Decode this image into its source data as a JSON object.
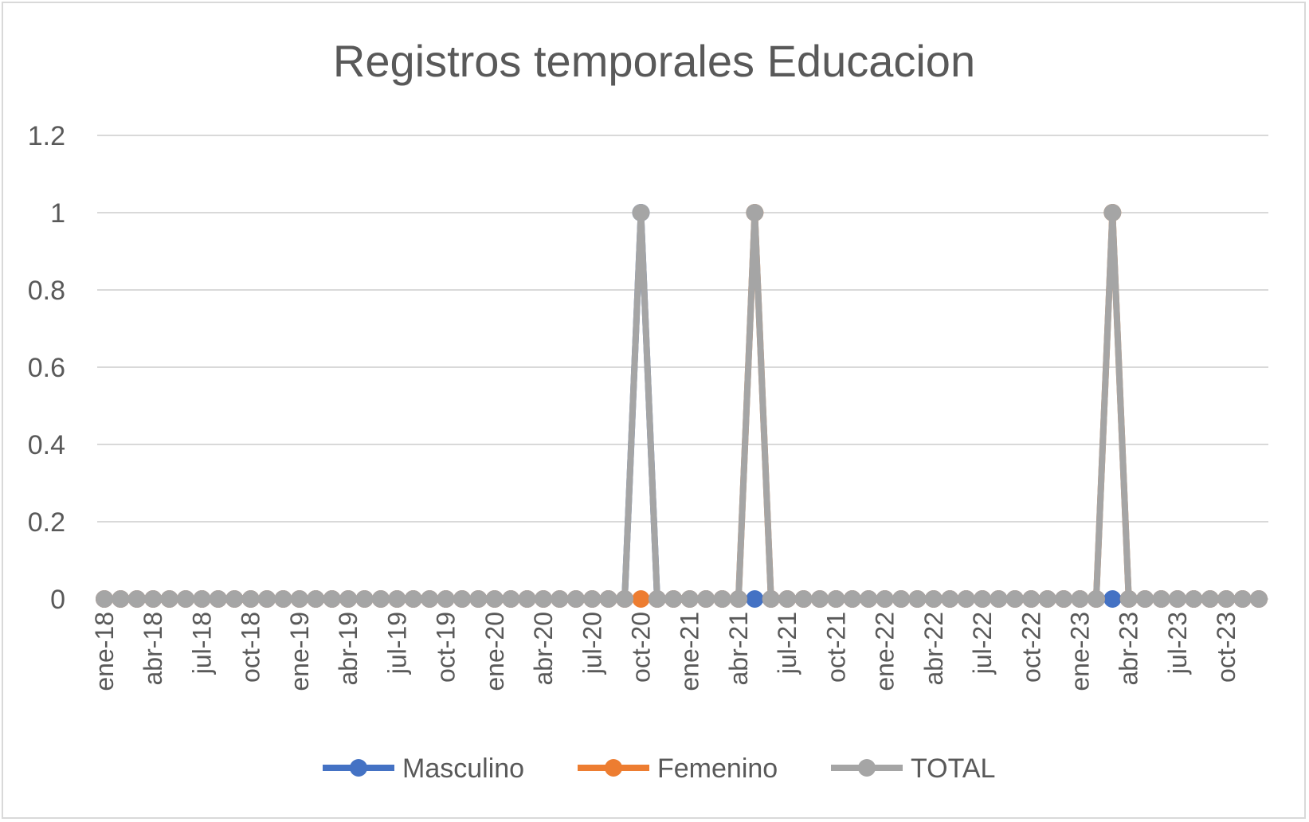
{
  "chart_data": {
    "type": "line",
    "title": "Registros temporales Educacion",
    "xlabel": "",
    "ylabel": "",
    "ylim": [
      0,
      1.2
    ],
    "yticks": [
      "0",
      "0.2",
      "0.4",
      "0.6",
      "0.8",
      "1",
      "1.2"
    ],
    "grid": true,
    "legend_position": "bottom",
    "x": [
      "2018-01",
      "2018-02",
      "2018-03",
      "2018-04",
      "2018-05",
      "2018-06",
      "2018-07",
      "2018-08",
      "2018-09",
      "2018-10",
      "2018-11",
      "2018-12",
      "2019-01",
      "2019-02",
      "2019-03",
      "2019-04",
      "2019-05",
      "2019-06",
      "2019-07",
      "2019-08",
      "2019-09",
      "2019-10",
      "2019-11",
      "2019-12",
      "2020-01",
      "2020-02",
      "2020-03",
      "2020-04",
      "2020-05",
      "2020-06",
      "2020-07",
      "2020-08",
      "2020-09",
      "2020-10",
      "2020-11",
      "2020-12",
      "2021-01",
      "2021-02",
      "2021-03",
      "2021-04",
      "2021-05",
      "2021-06",
      "2021-07",
      "2021-08",
      "2021-09",
      "2021-10",
      "2021-11",
      "2021-12",
      "2022-01",
      "2022-02",
      "2022-03",
      "2022-04",
      "2022-05",
      "2022-06",
      "2022-07",
      "2022-08",
      "2022-09",
      "2022-10",
      "2022-11",
      "2022-12",
      "2023-01",
      "2023-02",
      "2023-03",
      "2023-04",
      "2023-05",
      "2023-06",
      "2023-07",
      "2023-08",
      "2023-09",
      "2023-10",
      "2023-11",
      "2023-12"
    ],
    "xtick_labels": [
      {
        "x": "2018-01",
        "label": "ene-18"
      },
      {
        "x": "2018-04",
        "label": "abr-18"
      },
      {
        "x": "2018-07",
        "label": "jul-18"
      },
      {
        "x": "2018-10",
        "label": "oct-18"
      },
      {
        "x": "2019-01",
        "label": "ene-19"
      },
      {
        "x": "2019-04",
        "label": "abr-19"
      },
      {
        "x": "2019-07",
        "label": "jul-19"
      },
      {
        "x": "2019-10",
        "label": "oct-19"
      },
      {
        "x": "2020-01",
        "label": "ene-20"
      },
      {
        "x": "2020-04",
        "label": "abr-20"
      },
      {
        "x": "2020-07",
        "label": "jul-20"
      },
      {
        "x": "2020-10",
        "label": "oct-20"
      },
      {
        "x": "2021-01",
        "label": "ene-21"
      },
      {
        "x": "2021-04",
        "label": "abr-21"
      },
      {
        "x": "2021-07",
        "label": "jul-21"
      },
      {
        "x": "2021-10",
        "label": "oct-21"
      },
      {
        "x": "2022-01",
        "label": "ene-22"
      },
      {
        "x": "2022-04",
        "label": "abr-22"
      },
      {
        "x": "2022-07",
        "label": "jul-22"
      },
      {
        "x": "2022-10",
        "label": "oct-22"
      },
      {
        "x": "2023-01",
        "label": "ene-23"
      },
      {
        "x": "2023-04",
        "label": "abr-23"
      },
      {
        "x": "2023-07",
        "label": "jul-23"
      },
      {
        "x": "2023-10",
        "label": "oct-23"
      }
    ],
    "series": [
      {
        "name": "Masculino",
        "color": "#4472c4",
        "values": [
          0,
          0,
          0,
          0,
          0,
          0,
          0,
          0,
          0,
          0,
          0,
          0,
          0,
          0,
          0,
          0,
          0,
          0,
          0,
          0,
          0,
          0,
          0,
          0,
          0,
          0,
          0,
          0,
          0,
          0,
          0,
          0,
          0,
          1,
          0,
          0,
          0,
          0,
          0,
          0,
          0,
          0,
          0,
          0,
          0,
          0,
          0,
          0,
          0,
          0,
          0,
          0,
          0,
          0,
          0,
          0,
          0,
          0,
          0,
          0,
          0,
          0,
          0,
          0,
          0,
          0,
          0,
          0,
          0,
          0,
          0,
          0
        ]
      },
      {
        "name": "Femenino",
        "color": "#ed7d31",
        "values": [
          0,
          0,
          0,
          0,
          0,
          0,
          0,
          0,
          0,
          0,
          0,
          0,
          0,
          0,
          0,
          0,
          0,
          0,
          0,
          0,
          0,
          0,
          0,
          0,
          0,
          0,
          0,
          0,
          0,
          0,
          0,
          0,
          0,
          0,
          0,
          0,
          0,
          0,
          0,
          0,
          1,
          0,
          0,
          0,
          0,
          0,
          0,
          0,
          0,
          0,
          0,
          0,
          0,
          0,
          0,
          0,
          0,
          0,
          0,
          0,
          0,
          0,
          1,
          0,
          0,
          0,
          0,
          0,
          0,
          0,
          0,
          0
        ]
      },
      {
        "name": "TOTAL",
        "color": "#a5a5a5",
        "values": [
          0,
          0,
          0,
          0,
          0,
          0,
          0,
          0,
          0,
          0,
          0,
          0,
          0,
          0,
          0,
          0,
          0,
          0,
          0,
          0,
          0,
          0,
          0,
          0,
          0,
          0,
          0,
          0,
          0,
          0,
          0,
          0,
          0,
          1,
          0,
          0,
          0,
          0,
          0,
          0,
          1,
          0,
          0,
          0,
          0,
          0,
          0,
          0,
          0,
          0,
          0,
          0,
          0,
          0,
          0,
          0,
          0,
          0,
          0,
          0,
          0,
          0,
          1,
          0,
          0,
          0,
          0,
          0,
          0,
          0,
          0,
          0
        ]
      }
    ]
  }
}
